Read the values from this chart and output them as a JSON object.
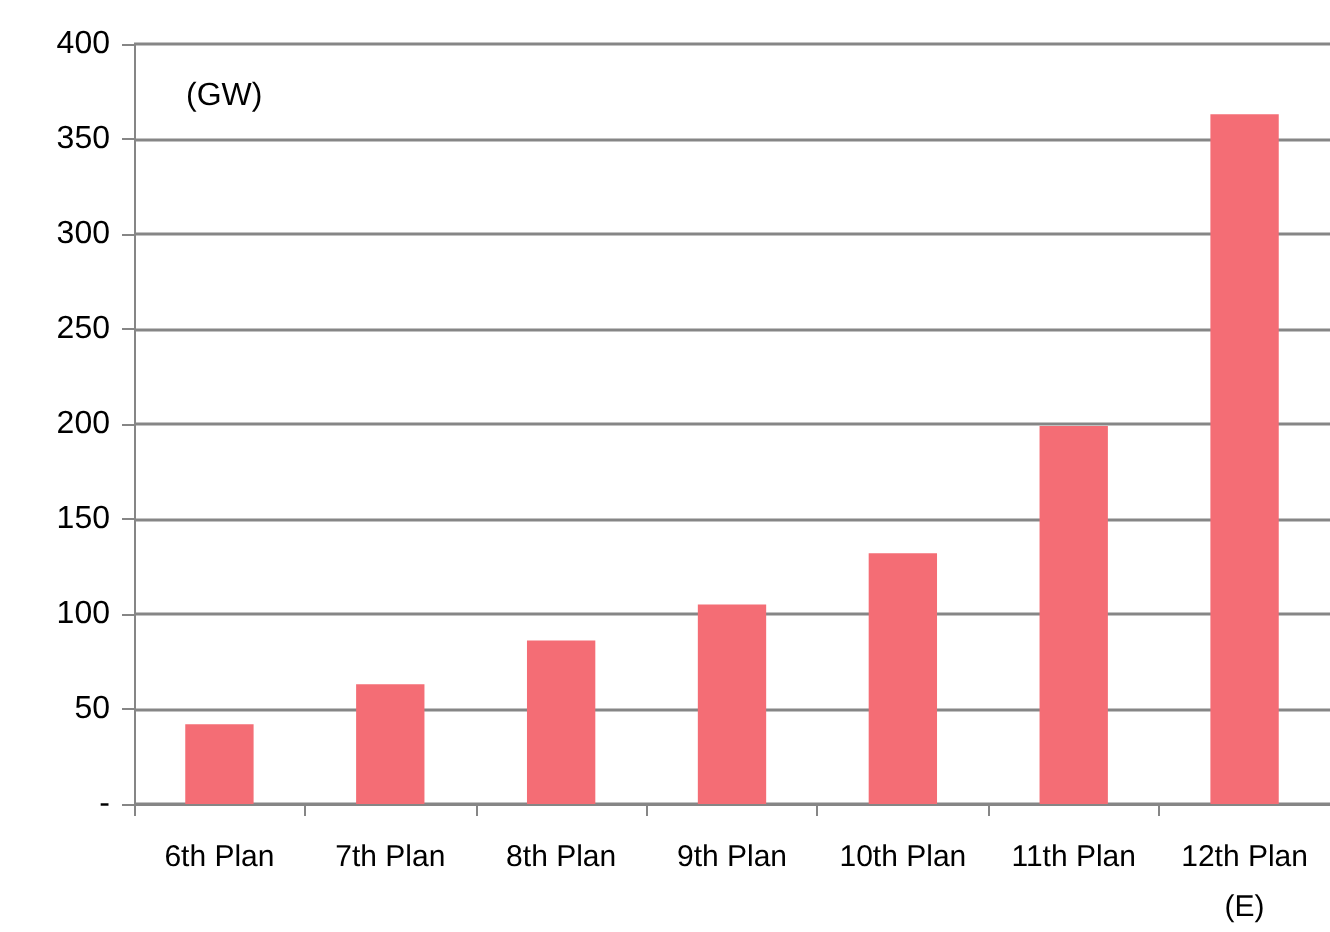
{
  "chart_data": {
    "type": "bar",
    "ylabel": "(GW)",
    "categories": [
      "6th Plan",
      "7th Plan",
      "8th Plan",
      "9th Plan",
      "10th Plan",
      "11th Plan",
      "12th Plan\n(E)"
    ],
    "values": [
      42,
      63,
      86,
      105,
      132,
      199,
      363
    ],
    "color": "#f46d75",
    "ylim": [
      0,
      400
    ],
    "yticks": [
      {
        "value": 0,
        "label": "-"
      },
      50,
      100,
      150,
      200,
      250,
      300,
      350,
      400
    ],
    "grid": "y"
  }
}
